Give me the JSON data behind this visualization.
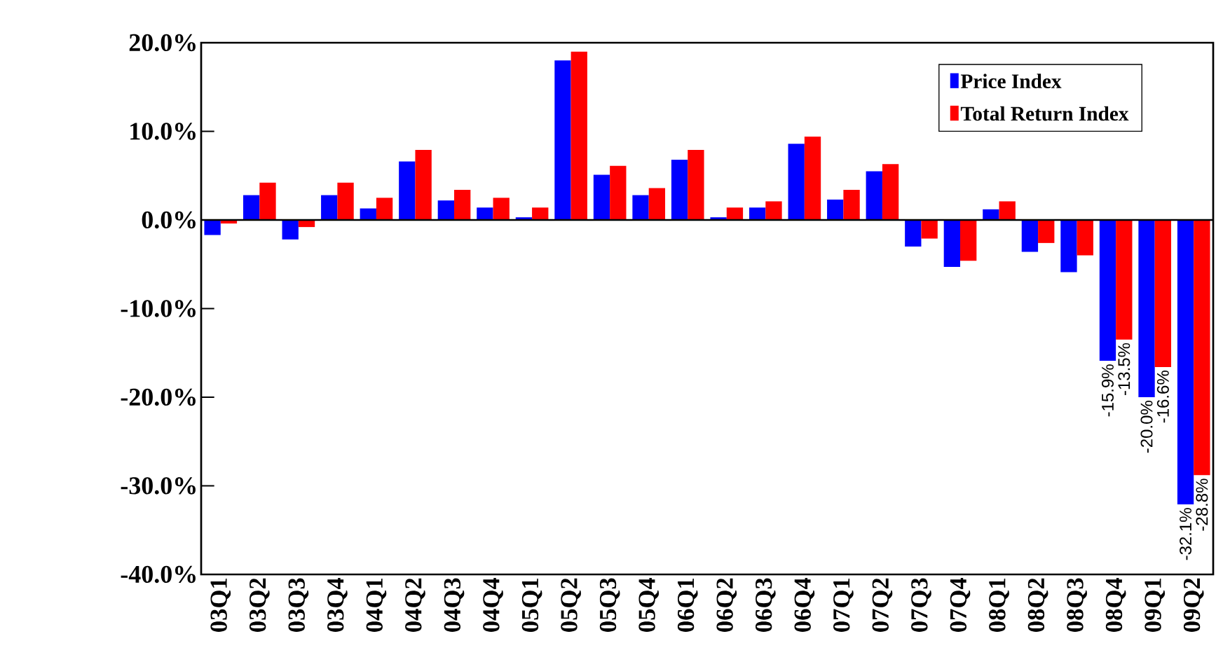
{
  "chart_data": {
    "type": "bar",
    "categories": [
      "03Q1",
      "03Q2",
      "03Q3",
      "03Q4",
      "04Q1",
      "04Q2",
      "04Q3",
      "04Q4",
      "05Q1",
      "05Q2",
      "05Q3",
      "05Q4",
      "06Q1",
      "06Q2",
      "06Q3",
      "06Q4",
      "07Q1",
      "07Q2",
      "07Q3",
      "07Q4",
      "08Q1",
      "08Q2",
      "08Q3",
      "08Q4",
      "09Q1",
      "09Q2"
    ],
    "series": [
      {
        "name": "Price Index",
        "color": "#0000ff",
        "values": [
          -1.7,
          2.8,
          -2.2,
          2.8,
          1.3,
          6.6,
          2.2,
          1.4,
          0.3,
          18.0,
          5.1,
          2.8,
          6.8,
          0.3,
          1.4,
          8.6,
          2.3,
          5.5,
          -3.0,
          -5.3,
          1.2,
          -3.6,
          -5.9,
          -15.9,
          -20.0,
          -32.1
        ],
        "value_labels": [
          null,
          null,
          null,
          null,
          null,
          null,
          null,
          null,
          null,
          null,
          null,
          null,
          null,
          null,
          null,
          null,
          null,
          null,
          null,
          null,
          null,
          null,
          null,
          "-15.9%",
          "-20.0%",
          "-32.1%"
        ]
      },
      {
        "name": "Total Return Index",
        "color": "#ff0000",
        "values": [
          -0.4,
          4.2,
          -0.8,
          4.2,
          2.5,
          7.9,
          3.4,
          2.5,
          1.4,
          19.0,
          6.1,
          3.6,
          7.9,
          1.4,
          2.1,
          9.4,
          3.4,
          6.3,
          -2.1,
          -4.6,
          2.1,
          -2.6,
          -4.0,
          -13.5,
          -16.6,
          -28.8
        ],
        "value_labels": [
          null,
          null,
          null,
          null,
          null,
          null,
          null,
          null,
          null,
          null,
          null,
          null,
          null,
          null,
          null,
          null,
          null,
          null,
          null,
          null,
          null,
          null,
          null,
          "-13.5%",
          "-16.6%",
          "-28.8%"
        ]
      }
    ],
    "ylim": [
      -40,
      20
    ],
    "yticks": [
      {
        "value": -40,
        "label": "-40.0%"
      },
      {
        "value": -30,
        "label": "-30.0%"
      },
      {
        "value": -20,
        "label": "-20.0%"
      },
      {
        "value": -10,
        "label": "-10.0%"
      },
      {
        "value": 0,
        "label": "0.0%"
      },
      {
        "value": 10,
        "label": "10.0%"
      },
      {
        "value": 20,
        "label": "20.0%"
      }
    ],
    "ref_lines": [
      {
        "axis": "y",
        "value": 0,
        "color": "#000000"
      }
    ],
    "legend": "top right"
  }
}
